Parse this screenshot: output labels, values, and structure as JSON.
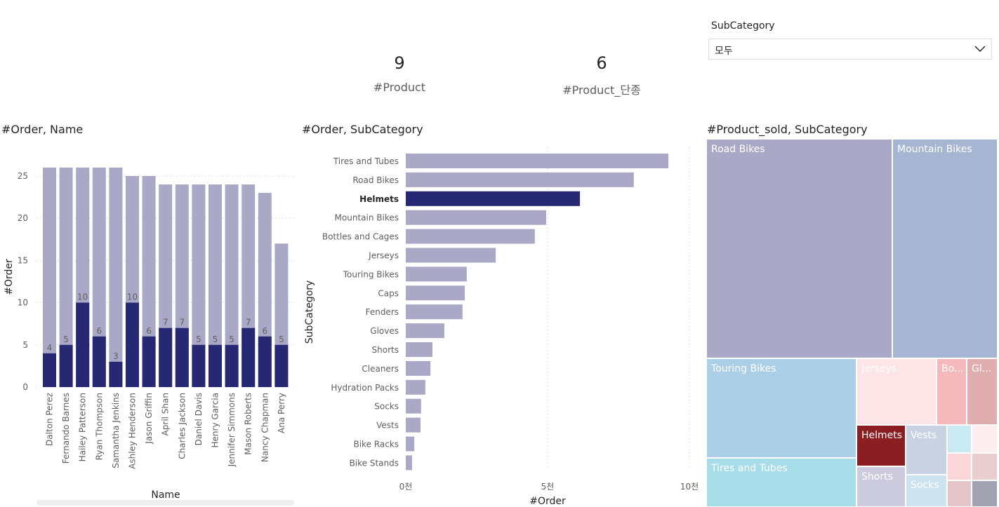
{
  "kpis": [
    {
      "value": "9",
      "label": "#Product"
    },
    {
      "value": "6",
      "label": "#Product_단종"
    }
  ],
  "slicer": {
    "label": "SubCategory",
    "value": "모두",
    "icon": "chevron-down-icon"
  },
  "colors": {
    "base": "#a9a9c7",
    "highlight": "#262874"
  },
  "chart_data": [
    {
      "type": "bar",
      "title": "#Order, Name",
      "xlabel": "Name",
      "ylabel": "#Order",
      "ylim": [
        0,
        26
      ],
      "yticks": [
        "0",
        "5",
        "10",
        "15",
        "20",
        "25"
      ],
      "categories": [
        "Dalton Perez",
        "Fernando Barnes",
        "Hailey Patterson",
        "Ryan Thompson",
        "Samantha Jenkins",
        "Ashley Henderson",
        "Jason Griffin",
        "April Shan",
        "Charles Jackson",
        "Daniel Davis",
        "Henry Garcia",
        "Jennifer Simmons",
        "Mason Roberts",
        "Nancy Chapman",
        "Ana Perry"
      ],
      "series": [
        {
          "values": [
            26,
            26,
            26,
            26,
            26,
            25,
            25,
            24,
            24,
            24,
            24,
            24,
            24,
            23,
            17
          ]
        },
        {
          "values": [
            4,
            5,
            10,
            6,
            3,
            10,
            6,
            7,
            7,
            5,
            5,
            5,
            7,
            6,
            5
          ]
        }
      ],
      "data_labels": [
        "4",
        "5",
        "10",
        "6",
        "3",
        "10",
        "6",
        "7",
        "7",
        "5",
        "5",
        "5",
        "7",
        "6",
        "5"
      ],
      "grid": true
    },
    {
      "type": "bar",
      "orientation": "horizontal",
      "title": "#Order, SubCategory",
      "xlabel": "#Order",
      "ylabel": "SubCategory",
      "xlim": [
        0,
        10
      ],
      "xticks": [
        "0천",
        "5천",
        "10천"
      ],
      "categories": [
        "Tires and Tubes",
        "Road Bikes",
        "Helmets",
        "Mountain Bikes",
        "Bottles and Cages",
        "Jerseys",
        "Touring Bikes",
        "Caps",
        "Fenders",
        "Gloves",
        "Shorts",
        "Cleaners",
        "Hydration Packs",
        "Socks",
        "Vests",
        "Bike Racks",
        "Bike Stands"
      ],
      "values": [
        9.26,
        8.04,
        6.14,
        4.95,
        4.55,
        3.17,
        2.15,
        2.08,
        2.0,
        1.36,
        0.94,
        0.87,
        0.69,
        0.54,
        0.52,
        0.3,
        0.22
      ],
      "highlighted": "Helmets",
      "grid": true
    },
    {
      "type": "treemap",
      "title": "#Product_sold, SubCategory",
      "tiles": [
        {
          "label": "Road Bikes",
          "color": "#a9a9c7"
        },
        {
          "label": "Mountain Bikes",
          "color": "#a5b5d2"
        },
        {
          "label": "Touring Bikes",
          "color": "#abcfe6"
        },
        {
          "label": "Tires and Tubes",
          "color": "#a6dde9"
        },
        {
          "label": "Jerseys",
          "color": "#fde4e7"
        },
        {
          "label": "Bo...",
          "color": "#f5b9bc"
        },
        {
          "label": "Gl...",
          "color": "#dfadad"
        },
        {
          "label": "Helmets",
          "color": "#8b1e22"
        },
        {
          "label": "Shorts",
          "color": "#cbcbdd"
        },
        {
          "label": "Vests",
          "color": "#c8d2e3"
        },
        {
          "label": "Socks",
          "color": "#cde3f0"
        },
        {
          "label": "",
          "color": "#c9eaf3"
        },
        {
          "label": "",
          "color": "#fdeef0"
        },
        {
          "label": "",
          "color": "#fad6d8"
        },
        {
          "label": "",
          "color": "#eacdcf"
        },
        {
          "label": "",
          "color": "#e5c6c8"
        },
        {
          "label": "",
          "color": "#a3a2b3"
        }
      ]
    }
  ]
}
